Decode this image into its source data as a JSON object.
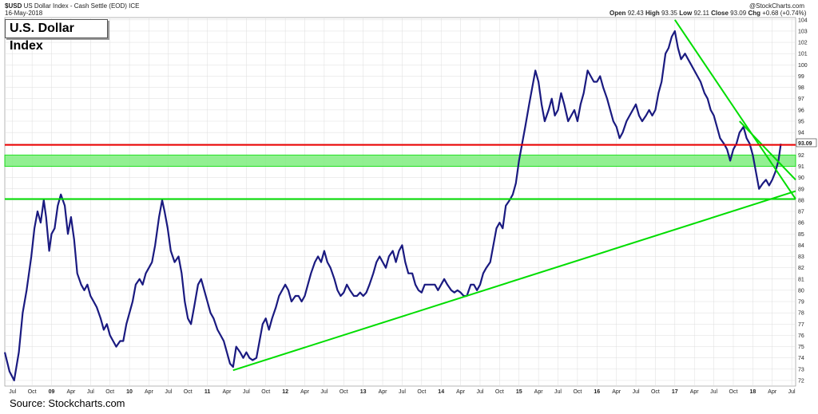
{
  "header": {
    "symbol": "$USD",
    "description": "US Dollar Index - Cash Settle (EOD) ICE",
    "date": "16-May-2018",
    "credit": "@StockCharts.com",
    "open_label": "Open",
    "open_value": "92.43",
    "high_label": "High",
    "high_value": "93.35",
    "low_label": "Low",
    "low_value": "92.11",
    "close_label": "Close",
    "close_value": "93.09",
    "chg_label": "Chg",
    "chg_value": "+0.68 (+0.74%)"
  },
  "title_box": "U.S. Dollar Index",
  "source_note": "Source: Stockcharts.com",
  "colors": {
    "price_line": "#1a1a80",
    "support_line": "#00dd00",
    "resistance_line": "#ee0000",
    "zone_fill": "#80ee80",
    "grid": "#dddddd"
  },
  "chart_data": {
    "type": "line",
    "title": "U.S. Dollar Index",
    "ylim": [
      71.5,
      104.2
    ],
    "y_ticks": [
      72,
      73,
      74,
      75,
      76,
      77,
      78,
      79,
      80,
      81,
      82,
      83,
      84,
      85,
      86,
      87,
      88,
      89,
      90,
      91,
      92,
      93,
      94,
      95,
      96,
      97,
      98,
      99,
      100,
      101,
      102,
      103,
      104
    ],
    "x_range": [
      2008.4,
      2018.55
    ],
    "x_tick_labels": [
      {
        "t": 2008.5,
        "label": "Jul"
      },
      {
        "t": 2008.75,
        "label": "Oct"
      },
      {
        "t": 2009.0,
        "label": "09",
        "year": true
      },
      {
        "t": 2009.25,
        "label": "Apr"
      },
      {
        "t": 2009.5,
        "label": "Jul"
      },
      {
        "t": 2009.75,
        "label": "Oct"
      },
      {
        "t": 2010.0,
        "label": "10",
        "year": true
      },
      {
        "t": 2010.25,
        "label": "Apr"
      },
      {
        "t": 2010.5,
        "label": "Jul"
      },
      {
        "t": 2010.75,
        "label": "Oct"
      },
      {
        "t": 2011.0,
        "label": "11",
        "year": true
      },
      {
        "t": 2011.25,
        "label": "Apr"
      },
      {
        "t": 2011.5,
        "label": "Jul"
      },
      {
        "t": 2011.75,
        "label": "Oct"
      },
      {
        "t": 2012.0,
        "label": "12",
        "year": true
      },
      {
        "t": 2012.25,
        "label": "Apr"
      },
      {
        "t": 2012.5,
        "label": "Jul"
      },
      {
        "t": 2012.75,
        "label": "Oct"
      },
      {
        "t": 2013.0,
        "label": "13",
        "year": true
      },
      {
        "t": 2013.25,
        "label": "Apr"
      },
      {
        "t": 2013.5,
        "label": "Jul"
      },
      {
        "t": 2013.75,
        "label": "Oct"
      },
      {
        "t": 2014.0,
        "label": "14",
        "year": true
      },
      {
        "t": 2014.25,
        "label": "Apr"
      },
      {
        "t": 2014.5,
        "label": "Jul"
      },
      {
        "t": 2014.75,
        "label": "Oct"
      },
      {
        "t": 2015.0,
        "label": "15",
        "year": true
      },
      {
        "t": 2015.25,
        "label": "Apr"
      },
      {
        "t": 2015.5,
        "label": "Jul"
      },
      {
        "t": 2015.75,
        "label": "Oct"
      },
      {
        "t": 2016.0,
        "label": "16",
        "year": true
      },
      {
        "t": 2016.25,
        "label": "Apr"
      },
      {
        "t": 2016.5,
        "label": "Jul"
      },
      {
        "t": 2016.75,
        "label": "Oct"
      },
      {
        "t": 2017.0,
        "label": "17",
        "year": true
      },
      {
        "t": 2017.25,
        "label": "Apr"
      },
      {
        "t": 2017.5,
        "label": "Jul"
      },
      {
        "t": 2017.75,
        "label": "Oct"
      },
      {
        "t": 2018.0,
        "label": "18",
        "year": true
      },
      {
        "t": 2018.25,
        "label": "Apr"
      },
      {
        "t": 2018.5,
        "label": "Jul"
      }
    ],
    "series": [
      {
        "points": [
          [
            2008.4,
            74.5
          ],
          [
            2008.46,
            72.8
          ],
          [
            2008.52,
            72.0
          ],
          [
            2008.58,
            74.5
          ],
          [
            2008.63,
            78.0
          ],
          [
            2008.68,
            80.0
          ],
          [
            2008.74,
            83.0
          ],
          [
            2008.78,
            85.5
          ],
          [
            2008.82,
            87.0
          ],
          [
            2008.86,
            86.0
          ],
          [
            2008.9,
            88.0
          ],
          [
            2008.93,
            86.5
          ],
          [
            2008.97,
            83.5
          ],
          [
            2009.0,
            85.0
          ],
          [
            2009.04,
            85.5
          ],
          [
            2009.08,
            87.5
          ],
          [
            2009.12,
            88.5
          ],
          [
            2009.17,
            87.5
          ],
          [
            2009.21,
            85.0
          ],
          [
            2009.25,
            86.5
          ],
          [
            2009.29,
            84.5
          ],
          [
            2009.33,
            81.5
          ],
          [
            2009.38,
            80.5
          ],
          [
            2009.42,
            80.0
          ],
          [
            2009.46,
            80.5
          ],
          [
            2009.5,
            79.5
          ],
          [
            2009.54,
            79.0
          ],
          [
            2009.58,
            78.5
          ],
          [
            2009.63,
            77.5
          ],
          [
            2009.67,
            76.5
          ],
          [
            2009.71,
            77.0
          ],
          [
            2009.75,
            76.0
          ],
          [
            2009.79,
            75.5
          ],
          [
            2009.83,
            75.0
          ],
          [
            2009.88,
            75.5
          ],
          [
            2009.92,
            75.5
          ],
          [
            2009.96,
            77.0
          ],
          [
            2010.0,
            78.0
          ],
          [
            2010.04,
            79.0
          ],
          [
            2010.08,
            80.5
          ],
          [
            2010.13,
            81.0
          ],
          [
            2010.17,
            80.5
          ],
          [
            2010.21,
            81.5
          ],
          [
            2010.25,
            82.0
          ],
          [
            2010.29,
            82.5
          ],
          [
            2010.33,
            84.0
          ],
          [
            2010.38,
            86.5
          ],
          [
            2010.42,
            88.0
          ],
          [
            2010.45,
            87.0
          ],
          [
            2010.49,
            85.5
          ],
          [
            2010.53,
            83.5
          ],
          [
            2010.58,
            82.5
          ],
          [
            2010.63,
            83.0
          ],
          [
            2010.67,
            81.5
          ],
          [
            2010.71,
            79.0
          ],
          [
            2010.75,
            77.5
          ],
          [
            2010.79,
            77.0
          ],
          [
            2010.83,
            78.5
          ],
          [
            2010.88,
            80.5
          ],
          [
            2010.92,
            81.0
          ],
          [
            2010.96,
            80.0
          ],
          [
            2011.0,
            79.0
          ],
          [
            2011.04,
            78.0
          ],
          [
            2011.08,
            77.5
          ],
          [
            2011.13,
            76.5
          ],
          [
            2011.17,
            76.0
          ],
          [
            2011.21,
            75.5
          ],
          [
            2011.25,
            74.5
          ],
          [
            2011.29,
            73.5
          ],
          [
            2011.33,
            73.2
          ],
          [
            2011.37,
            75.0
          ],
          [
            2011.42,
            74.5
          ],
          [
            2011.46,
            74.0
          ],
          [
            2011.5,
            74.5
          ],
          [
            2011.54,
            74.0
          ],
          [
            2011.58,
            73.8
          ],
          [
            2011.63,
            74.0
          ],
          [
            2011.67,
            75.5
          ],
          [
            2011.71,
            77.0
          ],
          [
            2011.75,
            77.5
          ],
          [
            2011.79,
            76.5
          ],
          [
            2011.83,
            77.5
          ],
          [
            2011.88,
            78.5
          ],
          [
            2011.92,
            79.5
          ],
          [
            2011.96,
            80.0
          ],
          [
            2012.0,
            80.5
          ],
          [
            2012.04,
            80.0
          ],
          [
            2012.08,
            79.0
          ],
          [
            2012.13,
            79.5
          ],
          [
            2012.17,
            79.5
          ],
          [
            2012.21,
            79.0
          ],
          [
            2012.25,
            79.5
          ],
          [
            2012.29,
            80.5
          ],
          [
            2012.33,
            81.5
          ],
          [
            2012.38,
            82.5
          ],
          [
            2012.42,
            83.0
          ],
          [
            2012.46,
            82.5
          ],
          [
            2012.5,
            83.5
          ],
          [
            2012.54,
            82.5
          ],
          [
            2012.58,
            82.0
          ],
          [
            2012.63,
            81.0
          ],
          [
            2012.67,
            80.0
          ],
          [
            2012.71,
            79.5
          ],
          [
            2012.75,
            79.8
          ],
          [
            2012.79,
            80.5
          ],
          [
            2012.83,
            80.0
          ],
          [
            2012.88,
            79.5
          ],
          [
            2012.92,
            79.5
          ],
          [
            2012.96,
            79.8
          ],
          [
            2013.0,
            79.5
          ],
          [
            2013.04,
            79.8
          ],
          [
            2013.08,
            80.5
          ],
          [
            2013.13,
            81.5
          ],
          [
            2013.17,
            82.5
          ],
          [
            2013.21,
            83.0
          ],
          [
            2013.25,
            82.5
          ],
          [
            2013.29,
            82.0
          ],
          [
            2013.33,
            83.0
          ],
          [
            2013.38,
            83.5
          ],
          [
            2013.42,
            82.5
          ],
          [
            2013.46,
            83.5
          ],
          [
            2013.5,
            84.0
          ],
          [
            2013.54,
            82.5
          ],
          [
            2013.58,
            81.5
          ],
          [
            2013.63,
            81.5
          ],
          [
            2013.67,
            80.5
          ],
          [
            2013.71,
            80.0
          ],
          [
            2013.75,
            79.8
          ],
          [
            2013.79,
            80.5
          ],
          [
            2013.83,
            80.5
          ],
          [
            2013.88,
            80.5
          ],
          [
            2013.92,
            80.5
          ],
          [
            2013.96,
            80.0
          ],
          [
            2014.0,
            80.5
          ],
          [
            2014.04,
            81.0
          ],
          [
            2014.08,
            80.5
          ],
          [
            2014.13,
            80.0
          ],
          [
            2014.17,
            79.8
          ],
          [
            2014.21,
            80.0
          ],
          [
            2014.25,
            79.8
          ],
          [
            2014.29,
            79.5
          ],
          [
            2014.33,
            79.5
          ],
          [
            2014.38,
            80.5
          ],
          [
            2014.42,
            80.5
          ],
          [
            2014.46,
            80.0
          ],
          [
            2014.5,
            80.5
          ],
          [
            2014.54,
            81.5
          ],
          [
            2014.58,
            82.0
          ],
          [
            2014.63,
            82.5
          ],
          [
            2014.67,
            84.0
          ],
          [
            2014.71,
            85.5
          ],
          [
            2014.75,
            86.0
          ],
          [
            2014.79,
            85.5
          ],
          [
            2014.83,
            87.5
          ],
          [
            2014.88,
            88.0
          ],
          [
            2014.92,
            88.5
          ],
          [
            2014.96,
            89.5
          ],
          [
            2015.0,
            91.5
          ],
          [
            2015.04,
            93.0
          ],
          [
            2015.08,
            94.5
          ],
          [
            2015.13,
            96.5
          ],
          [
            2015.17,
            98.0
          ],
          [
            2015.21,
            99.5
          ],
          [
            2015.25,
            98.5
          ],
          [
            2015.29,
            96.5
          ],
          [
            2015.33,
            95.0
          ],
          [
            2015.38,
            96.0
          ],
          [
            2015.42,
            97.0
          ],
          [
            2015.46,
            95.5
          ],
          [
            2015.5,
            96.0
          ],
          [
            2015.54,
            97.5
          ],
          [
            2015.58,
            96.5
          ],
          [
            2015.63,
            95.0
          ],
          [
            2015.67,
            95.5
          ],
          [
            2015.71,
            96.0
          ],
          [
            2015.75,
            95.0
          ],
          [
            2015.79,
            96.5
          ],
          [
            2015.83,
            97.5
          ],
          [
            2015.88,
            99.5
          ],
          [
            2015.92,
            99.0
          ],
          [
            2015.96,
            98.5
          ],
          [
            2016.0,
            98.5
          ],
          [
            2016.04,
            99.0
          ],
          [
            2016.08,
            98.0
          ],
          [
            2016.13,
            97.0
          ],
          [
            2016.17,
            96.0
          ],
          [
            2016.21,
            95.0
          ],
          [
            2016.25,
            94.5
          ],
          [
            2016.29,
            93.5
          ],
          [
            2016.33,
            94.0
          ],
          [
            2016.38,
            95.0
          ],
          [
            2016.42,
            95.5
          ],
          [
            2016.46,
            96.0
          ],
          [
            2016.5,
            96.5
          ],
          [
            2016.54,
            95.5
          ],
          [
            2016.58,
            95.0
          ],
          [
            2016.63,
            95.5
          ],
          [
            2016.67,
            96.0
          ],
          [
            2016.71,
            95.5
          ],
          [
            2016.75,
            96.0
          ],
          [
            2016.79,
            97.5
          ],
          [
            2016.83,
            98.5
          ],
          [
            2016.88,
            101.0
          ],
          [
            2016.92,
            101.5
          ],
          [
            2016.96,
            102.5
          ],
          [
            2017.0,
            103.0
          ],
          [
            2017.04,
            101.5
          ],
          [
            2017.08,
            100.5
          ],
          [
            2017.13,
            101.0
          ],
          [
            2017.17,
            100.5
          ],
          [
            2017.21,
            100.0
          ],
          [
            2017.25,
            99.5
          ],
          [
            2017.29,
            99.0
          ],
          [
            2017.33,
            98.5
          ],
          [
            2017.38,
            97.5
          ],
          [
            2017.42,
            97.0
          ],
          [
            2017.46,
            96.0
          ],
          [
            2017.5,
            95.5
          ],
          [
            2017.54,
            94.5
          ],
          [
            2017.58,
            93.5
          ],
          [
            2017.63,
            93.0
          ],
          [
            2017.67,
            92.5
          ],
          [
            2017.71,
            91.5
          ],
          [
            2017.75,
            92.5
          ],
          [
            2017.79,
            93.0
          ],
          [
            2017.83,
            94.0
          ],
          [
            2017.88,
            94.5
          ],
          [
            2017.92,
            93.5
          ],
          [
            2017.96,
            93.0
          ],
          [
            2018.0,
            92.0
          ],
          [
            2018.04,
            90.5
          ],
          [
            2018.08,
            89.0
          ],
          [
            2018.13,
            89.5
          ],
          [
            2018.17,
            89.8
          ],
          [
            2018.21,
            89.3
          ],
          [
            2018.25,
            89.8
          ],
          [
            2018.29,
            90.5
          ],
          [
            2018.33,
            91.5
          ],
          [
            2018.36,
            93.0
          ]
        ]
      }
    ],
    "trendlines": [
      {
        "from": [
          2011.33,
          72.9
        ],
        "to": [
          2018.55,
          88.8
        ]
      },
      {
        "from": [
          2008.4,
          88.1
        ],
        "to": [
          2018.55,
          88.1
        ]
      },
      {
        "from": [
          2017.0,
          104.0
        ],
        "to": [
          2018.55,
          88.1
        ]
      },
      {
        "from": [
          2017.83,
          95.0
        ],
        "to": [
          2018.55,
          89.8
        ]
      },
      {
        "from": [
          2008.4,
          92.9
        ],
        "to": [
          2018.55,
          92.9
        ]
      }
    ],
    "zone": {
      "y_low": 91.0,
      "y_high": 92.0
    },
    "last_value_label": "93.09"
  }
}
